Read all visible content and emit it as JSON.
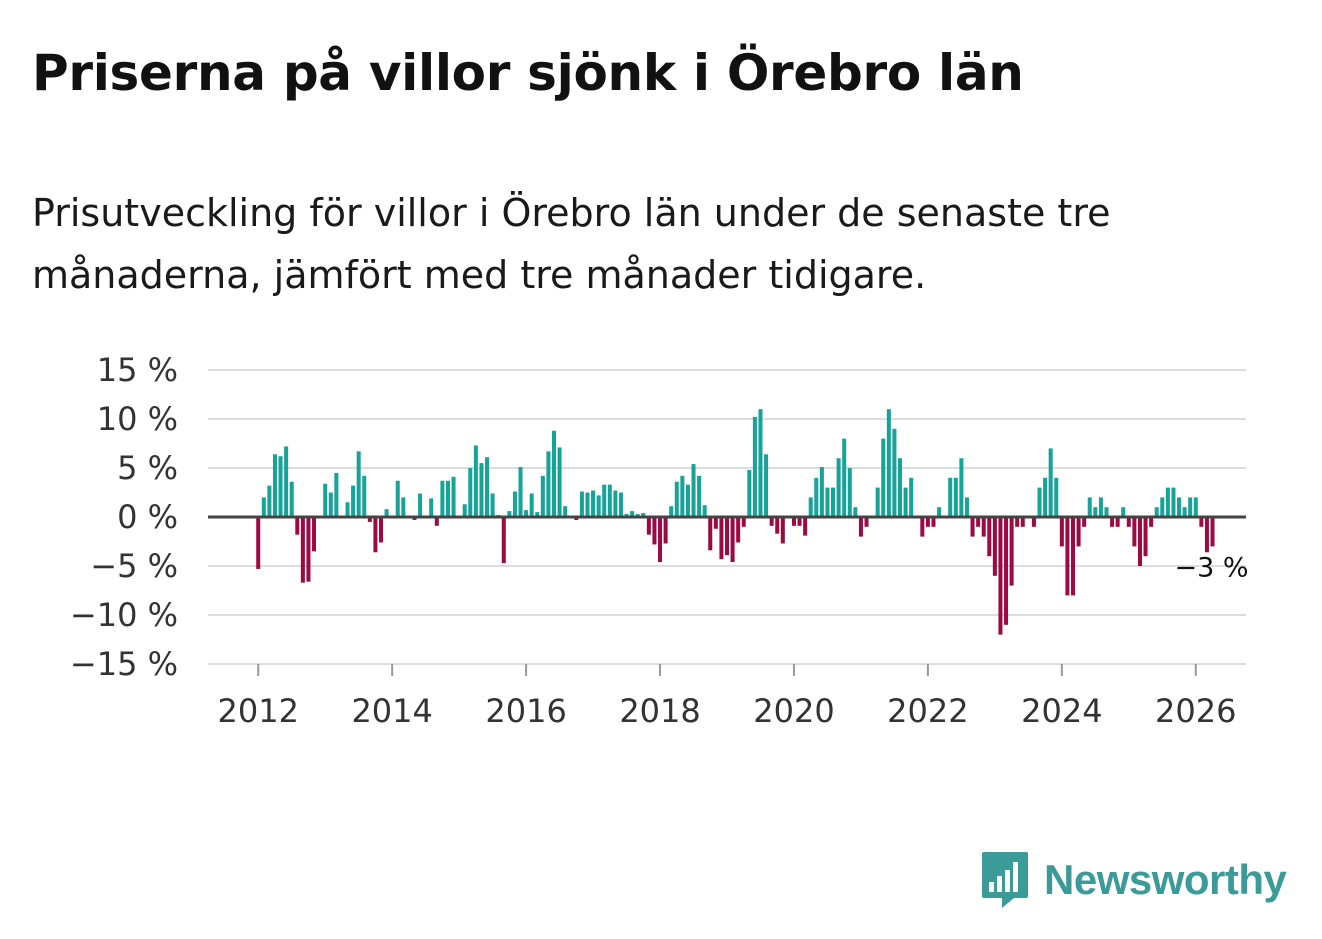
{
  "title": "Priserna på villor sjönk i Örebro län",
  "subtitle": "Prisutveckling för villor i Örebro län under de senaste tre månaderna, jämfört med tre månader tidigare.",
  "brand": {
    "name": "Newsworthy"
  },
  "colors": {
    "positive": "#16a398",
    "negative": "#9c0a41",
    "grid": "#dddddd",
    "zero_line": "#444444",
    "brand": "#3a9b98"
  },
  "chart_data": {
    "type": "bar",
    "title": "Priserna på villor sjönk i Örebro län",
    "xlabel": "",
    "ylabel": "",
    "ylim": [
      -15,
      15
    ],
    "xlim": [
      2011.25,
      2026.75
    ],
    "y_ticks": [
      15,
      10,
      5,
      0,
      -5,
      -10,
      -15
    ],
    "y_tick_labels": [
      "15 %",
      "10 %",
      "5 %",
      "0 %",
      "−5 %",
      "−10 %",
      "−15 %"
    ],
    "x_ticks": [
      2012,
      2014,
      2016,
      2018,
      2020,
      2022,
      2024,
      2026
    ],
    "x_tick_labels": [
      "2012",
      "2014",
      "2016",
      "2018",
      "2020",
      "2022",
      "2024",
      "2026"
    ],
    "start": {
      "year": 2012,
      "month": 1
    },
    "frequency": "monthly",
    "values": [
      -5.3,
      2.0,
      3.2,
      6.4,
      6.2,
      7.2,
      3.6,
      -1.8,
      -6.7,
      -6.6,
      -3.5,
      0.0,
      3.4,
      2.5,
      4.5,
      0.0,
      1.5,
      3.2,
      6.7,
      4.2,
      -0.5,
      -3.6,
      -2.6,
      0.8,
      0.0,
      3.7,
      2.0,
      0.0,
      -0.3,
      2.4,
      0.0,
      1.9,
      -0.9,
      3.7,
      3.7,
      4.1,
      0.0,
      1.3,
      5.0,
      7.3,
      5.5,
      6.1,
      2.4,
      0.2,
      -4.7,
      0.6,
      2.6,
      5.1,
      0.7,
      2.4,
      0.5,
      4.2,
      6.7,
      8.8,
      7.1,
      1.1,
      0.0,
      -0.3,
      2.6,
      2.5,
      2.7,
      2.2,
      3.3,
      3.3,
      2.7,
      2.5,
      0.3,
      0.6,
      0.3,
      0.4,
      -1.8,
      -2.8,
      -4.6,
      -2.7,
      1.1,
      3.6,
      4.2,
      3.3,
      5.4,
      4.2,
      1.2,
      -3.4,
      -1.2,
      -4.3,
      -3.9,
      -4.6,
      -2.6,
      -1.0,
      4.8,
      10.2,
      11.0,
      6.4,
      -0.9,
      -1.7,
      -2.7,
      0.0,
      -0.9,
      -0.9,
      -1.9,
      2.0,
      4.0,
      5.1,
      3.0,
      3.0,
      6.0,
      8.0,
      5.0,
      1.0,
      -2.0,
      -1.0,
      0.0,
      3.0,
      8.0,
      11.0,
      9.0,
      6.0,
      3.0,
      4.0,
      0.0,
      -2.0,
      -1.0,
      -1.0,
      1.0,
      0.0,
      4.0,
      4.0,
      6.0,
      2.0,
      -2.0,
      -1.0,
      -2.0,
      -4.0,
      -6.0,
      -12.0,
      -11.0,
      -7.0,
      -1.0,
      -1.0,
      0.0,
      -1.0,
      3.0,
      4.0,
      7.0,
      4.0,
      -3.0,
      -8.0,
      -8.0,
      -3.0,
      -1.0,
      2.0,
      1.0,
      2.0,
      1.0,
      -1.0,
      -1.0,
      1.0,
      -1.0,
      -3.0,
      -5.0,
      -4.0,
      -1.0,
      1.0,
      2.0,
      3.0,
      3.0,
      2.0,
      1.0,
      2.0,
      2.0,
      -1.0,
      -3.6,
      -3.0
    ],
    "annotation": {
      "label": "−3 %",
      "target": "last"
    }
  }
}
